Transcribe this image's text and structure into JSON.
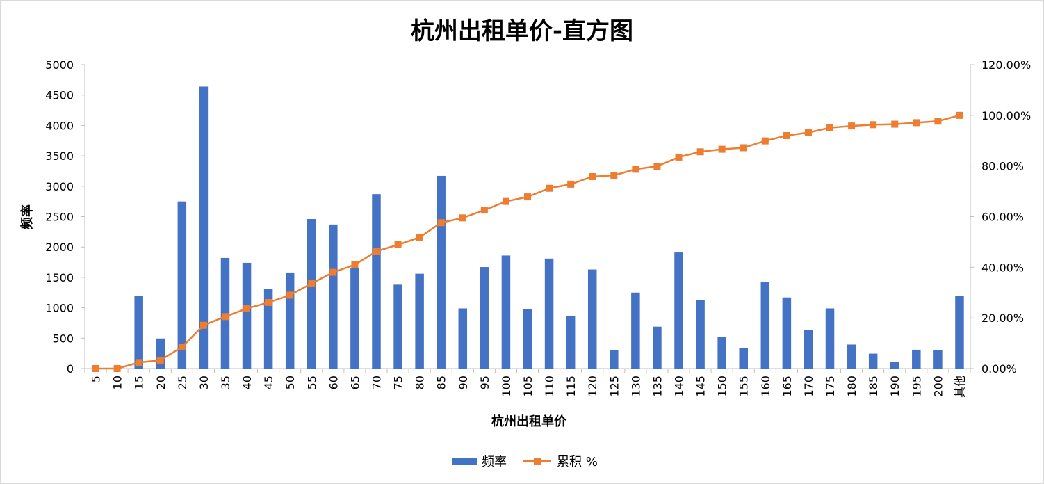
{
  "chart_data": {
    "type": "bar",
    "title": "杭州出租单价-直方图",
    "xlabel": "杭州出租单价",
    "ylabel": "频率",
    "categories": [
      "5",
      "10",
      "15",
      "20",
      "25",
      "30",
      "35",
      "40",
      "45",
      "50",
      "55",
      "60",
      "65",
      "70",
      "75",
      "80",
      "85",
      "90",
      "95",
      "100",
      "105",
      "110",
      "115",
      "120",
      "125",
      "130",
      "135",
      "140",
      "145",
      "150",
      "155",
      "160",
      "165",
      "170",
      "175",
      "180",
      "185",
      "190",
      "195",
      "200",
      "其他"
    ],
    "ylim": [
      0,
      5000
    ],
    "y_ticks": [
      0,
      500,
      1000,
      1500,
      2000,
      2500,
      3000,
      3500,
      4000,
      4500,
      5000
    ],
    "y2lim": [
      0,
      1.2
    ],
    "y2_ticks": [
      "0.00%",
      "20.00%",
      "40.00%",
      "60.00%",
      "80.00%",
      "100.00%",
      "120.00%"
    ],
    "grid": false,
    "legend_position": "bottom",
    "series": [
      {
        "name": "频率",
        "type": "bar",
        "axis": "left",
        "color": "#4472C4",
        "values": [
          0,
          0,
          1190,
          495,
          2750,
          4640,
          1820,
          1740,
          1310,
          1580,
          2460,
          2370,
          1660,
          2870,
          1380,
          1560,
          3170,
          990,
          1670,
          1860,
          980,
          1810,
          870,
          1630,
          300,
          1250,
          690,
          1910,
          1130,
          520,
          335,
          1430,
          1170,
          630,
          990,
          395,
          245,
          105,
          310,
          300,
          1200
        ]
      },
      {
        "name": "累积 %",
        "type": "line",
        "axis": "right",
        "color": "#ED7D31",
        "values": [
          0.0,
          0.0,
          0.024,
          0.033,
          0.085,
          0.171,
          0.205,
          0.237,
          0.261,
          0.29,
          0.336,
          0.38,
          0.41,
          0.463,
          0.489,
          0.518,
          0.576,
          0.595,
          0.626,
          0.66,
          0.678,
          0.712,
          0.728,
          0.758,
          0.763,
          0.787,
          0.799,
          0.835,
          0.856,
          0.866,
          0.872,
          0.899,
          0.92,
          0.932,
          0.951,
          0.958,
          0.963,
          0.965,
          0.971,
          0.977,
          1.0
        ]
      }
    ]
  }
}
